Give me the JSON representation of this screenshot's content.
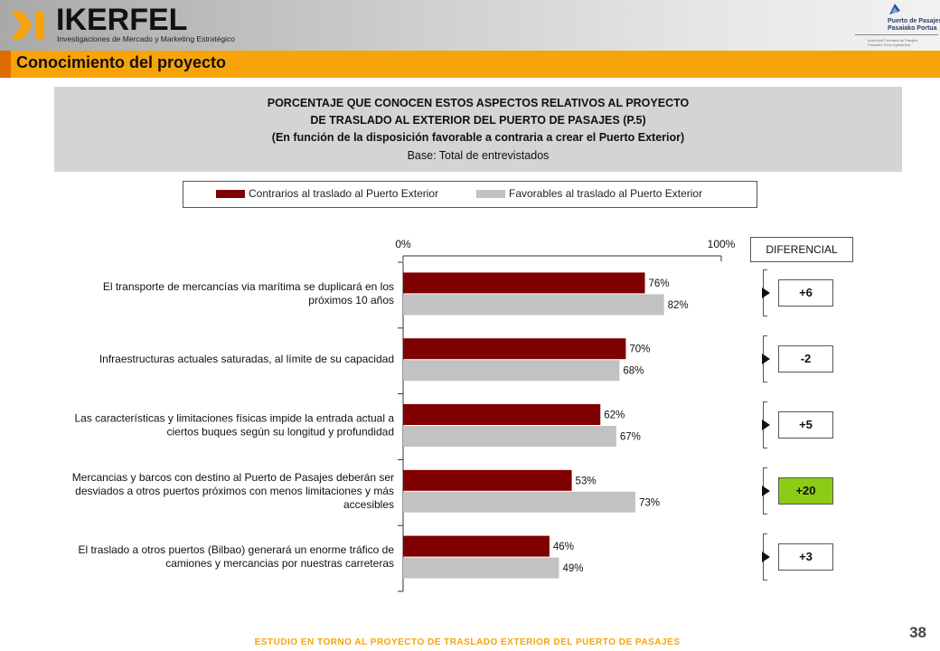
{
  "header": {
    "brand": "IKERFEL",
    "brand_subtitle": "Investigaciones de Mercado y Marketing Estratégico",
    "port_logo_lines": [
      "Puerto de Pasajes",
      "Pasaiako Portua"
    ],
    "port_logo_small": [
      "Autoridad Portuaria de Pasajes",
      "Pasaiako Portu Agintaritza"
    ]
  },
  "section_title": "Conocimiento del proyecto",
  "chart_title": {
    "lines": [
      "PORCENTAJE QUE CONOCEN ESTOS ASPECTOS RELATIVOS AL PROYECTO",
      "DE TRASLADO AL EXTERIOR DEL PUERTO DE PASAJES (P.5)",
      "(En función de la disposición favorable a contraria a crear el Puerto Exterior)"
    ],
    "base": "Base: Total de entrevistados"
  },
  "diferencial": {
    "header": "DIFERENCIAL",
    "values": [
      "+6",
      "-2",
      "+5",
      "+20",
      "+3"
    ],
    "highlight_index": 3,
    "highlight_color": "#8ccc14"
  },
  "chart_data": {
    "type": "bar",
    "orientation": "horizontal",
    "categories": [
      [
        "El transporte de mercancías via marítima se duplicará en los",
        "próximos 10 años"
      ],
      [
        "Infraestructuras actuales saturadas, al límite de su capacidad"
      ],
      [
        "Las características y limitaciones físicas impide la entrada actual a",
        "ciertos buques según su longitud y profundidad"
      ],
      [
        "Mercancias y barcos con destino al Puerto de Pasajes deberán ser",
        "desviados a otros puertos próximos con menos limitaciones y más",
        "accesibles"
      ],
      [
        "El traslado a otros puertos (Bilbao) generará un enorme tráfico de",
        "camiones y mercancias por nuestras carreteras"
      ]
    ],
    "series": [
      {
        "name": "Contrarios al traslado al Puerto Exterior",
        "color": "#7f0000",
        "values": [
          76,
          70,
          62,
          53,
          46
        ],
        "labels": [
          "76%",
          "70%",
          "62%",
          "53%",
          "46%"
        ]
      },
      {
        "name": "Favorables al traslado al Puerto Exterior",
        "color": "#c2c2c2",
        "values": [
          82,
          68,
          67,
          73,
          49
        ],
        "labels": [
          "82%",
          "68%",
          "67%",
          "73%",
          "49%"
        ]
      }
    ],
    "xlim": [
      0,
      100
    ],
    "xticks": [
      "0%",
      "100%"
    ],
    "grid": false,
    "legend": "top"
  },
  "footer": {
    "study": "ESTUDIO EN TORNO AL PROYECTO DE TRASLADO EXTERIOR DEL PUERTO DE PASAJES",
    "page": "38"
  }
}
